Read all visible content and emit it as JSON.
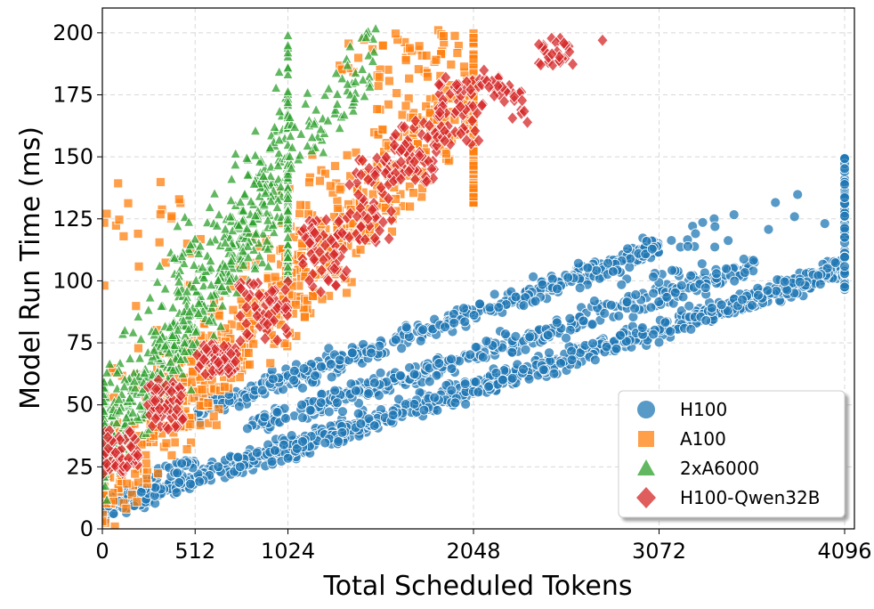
{
  "chart_data": {
    "type": "scatter",
    "title": "",
    "xlabel": "Total Scheduled Tokens",
    "ylabel": "Model Run Time (ms)",
    "xlim": [
      0,
      4150
    ],
    "ylim": [
      0,
      210
    ],
    "xticks": [
      0,
      512,
      1024,
      2048,
      3072,
      4096
    ],
    "yticks": [
      0,
      25,
      50,
      75,
      100,
      125,
      150,
      175,
      200
    ],
    "grid": true,
    "legend_position": "bottom-right",
    "series": [
      {
        "name": "H100",
        "marker": "circle",
        "color": "#1f77b4",
        "bands": [
          {
            "x_min": 0,
            "x_max": 4096,
            "y_at_0": 8,
            "y_at_4096": 105
          },
          {
            "x_min": 512,
            "x_max": 3072,
            "y_at_0": 34,
            "y_at_4096": 140
          },
          {
            "x_min": 800,
            "x_max": 3600,
            "y_at_0": 22,
            "y_at_4096": 118
          }
        ],
        "sample_points": [
          [
            0,
            10
          ],
          [
            512,
            25
          ],
          [
            1024,
            35
          ],
          [
            2048,
            55
          ],
          [
            3072,
            80
          ],
          [
            4096,
            105
          ],
          [
            600,
            43
          ],
          [
            1024,
            55
          ],
          [
            2048,
            80
          ],
          [
            3072,
            110
          ],
          [
            4096,
            148
          ]
        ]
      },
      {
        "name": "A100",
        "marker": "square",
        "color": "#ff7f0e",
        "bands": [
          {
            "x_min": 0,
            "x_max": 2048,
            "y_at_0": 15,
            "y_at_2048": 180
          }
        ],
        "sample_points": [
          [
            0,
            3
          ],
          [
            256,
            40
          ],
          [
            512,
            60
          ],
          [
            768,
            80
          ],
          [
            1024,
            95
          ],
          [
            1536,
            135
          ],
          [
            2048,
            175
          ],
          [
            2048,
            200
          ],
          [
            1900,
            200
          ],
          [
            1400,
            188
          ]
        ]
      },
      {
        "name": "2xA6000",
        "marker": "triangle",
        "color": "#2ca02c",
        "bands": [
          {
            "x_min": 0,
            "x_max": 1024,
            "y_at_0": 30,
            "y_at_1024": 150
          }
        ],
        "sample_points": [
          [
            0,
            20
          ],
          [
            100,
            80
          ],
          [
            256,
            70
          ],
          [
            512,
            105
          ],
          [
            768,
            130
          ],
          [
            1024,
            150
          ],
          [
            1024,
            200
          ],
          [
            1200,
            195
          ],
          [
            1500,
            200
          ]
        ]
      },
      {
        "name": "H100-Qwen32B",
        "marker": "diamond",
        "color": "#d62728",
        "bands": [
          {
            "x_min": 0,
            "x_max": 2100,
            "y_at_0": 22,
            "y_at_2100": 175
          }
        ],
        "sample_points": [
          [
            0,
            25
          ],
          [
            256,
            40
          ],
          [
            512,
            70
          ],
          [
            768,
            85
          ],
          [
            1024,
            80
          ],
          [
            1280,
            120
          ],
          [
            1536,
            148
          ],
          [
            1800,
            165
          ],
          [
            2048,
            170
          ],
          [
            2200,
            178
          ],
          [
            2400,
            195
          ],
          [
            2800,
            197
          ]
        ]
      }
    ]
  }
}
